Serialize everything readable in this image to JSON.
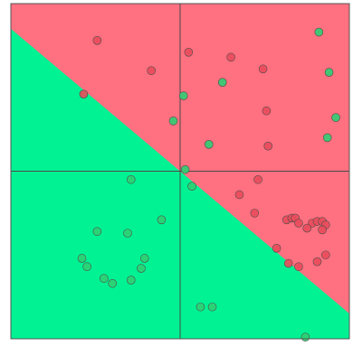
{
  "chart_data": {
    "type": "scatter",
    "title": "",
    "xlabel": "",
    "ylabel": "",
    "xlim": [
      -1,
      1
    ],
    "ylim": [
      -1,
      1
    ],
    "grid": false,
    "axes_lines": {
      "x": 0,
      "y": 0
    },
    "decision_boundary": {
      "description_free": true,
      "x_start": -1,
      "y_start": 0.85,
      "x_end": 1,
      "y_end": -0.85
    },
    "region_colors": {
      "upper_right": "#ff7080",
      "lower_left": "#00f293"
    },
    "point_colors": {
      "red": "#e94b5b",
      "green": "#2fcf72"
    },
    "series": [
      {
        "class": "red",
        "points": [
          [
            -0.49,
            0.78
          ],
          [
            -0.17,
            0.6
          ],
          [
            -0.57,
            0.46
          ],
          [
            0.05,
            0.71
          ],
          [
            0.3,
            0.68
          ],
          [
            0.49,
            0.61
          ],
          [
            0.51,
            0.36
          ],
          [
            0.52,
            0.15
          ],
          [
            0.46,
            -0.05
          ],
          [
            0.35,
            -0.14
          ],
          [
            0.44,
            -0.25
          ],
          [
            0.63,
            -0.29
          ],
          [
            0.66,
            -0.28
          ],
          [
            0.68,
            -0.28
          ],
          [
            0.7,
            -0.31
          ],
          [
            0.78,
            -0.31
          ],
          [
            0.81,
            -0.3
          ],
          [
            0.84,
            -0.3
          ],
          [
            0.86,
            -0.32
          ],
          [
            0.75,
            -0.34
          ],
          [
            0.84,
            -0.35
          ],
          [
            0.57,
            -0.46
          ],
          [
            0.64,
            -0.55
          ],
          [
            0.7,
            -0.57
          ],
          [
            0.81,
            -0.54
          ],
          [
            0.86,
            -0.5
          ]
        ]
      },
      {
        "class": "green",
        "points": [
          [
            0.82,
            0.83
          ],
          [
            0.88,
            0.59
          ],
          [
            0.92,
            0.32
          ],
          [
            0.87,
            0.2
          ],
          [
            0.25,
            0.53
          ],
          [
            0.02,
            0.45
          ],
          [
            -0.04,
            0.3
          ],
          [
            0.17,
            0.16
          ],
          [
            0.03,
            0.01
          ],
          [
            0.07,
            -0.09
          ],
          [
            -0.29,
            -0.05
          ],
          [
            -0.11,
            -0.29
          ],
          [
            -0.49,
            -0.36
          ],
          [
            -0.31,
            -0.37
          ],
          [
            -0.58,
            -0.52
          ],
          [
            -0.55,
            -0.57
          ],
          [
            -0.45,
            -0.64
          ],
          [
            -0.4,
            -0.67
          ],
          [
            -0.29,
            -0.65
          ],
          [
            -0.23,
            -0.58
          ],
          [
            -0.21,
            -0.52
          ],
          [
            0.12,
            -0.81
          ],
          [
            0.19,
            -0.81
          ],
          [
            0.74,
            -0.99
          ]
        ]
      }
    ]
  }
}
